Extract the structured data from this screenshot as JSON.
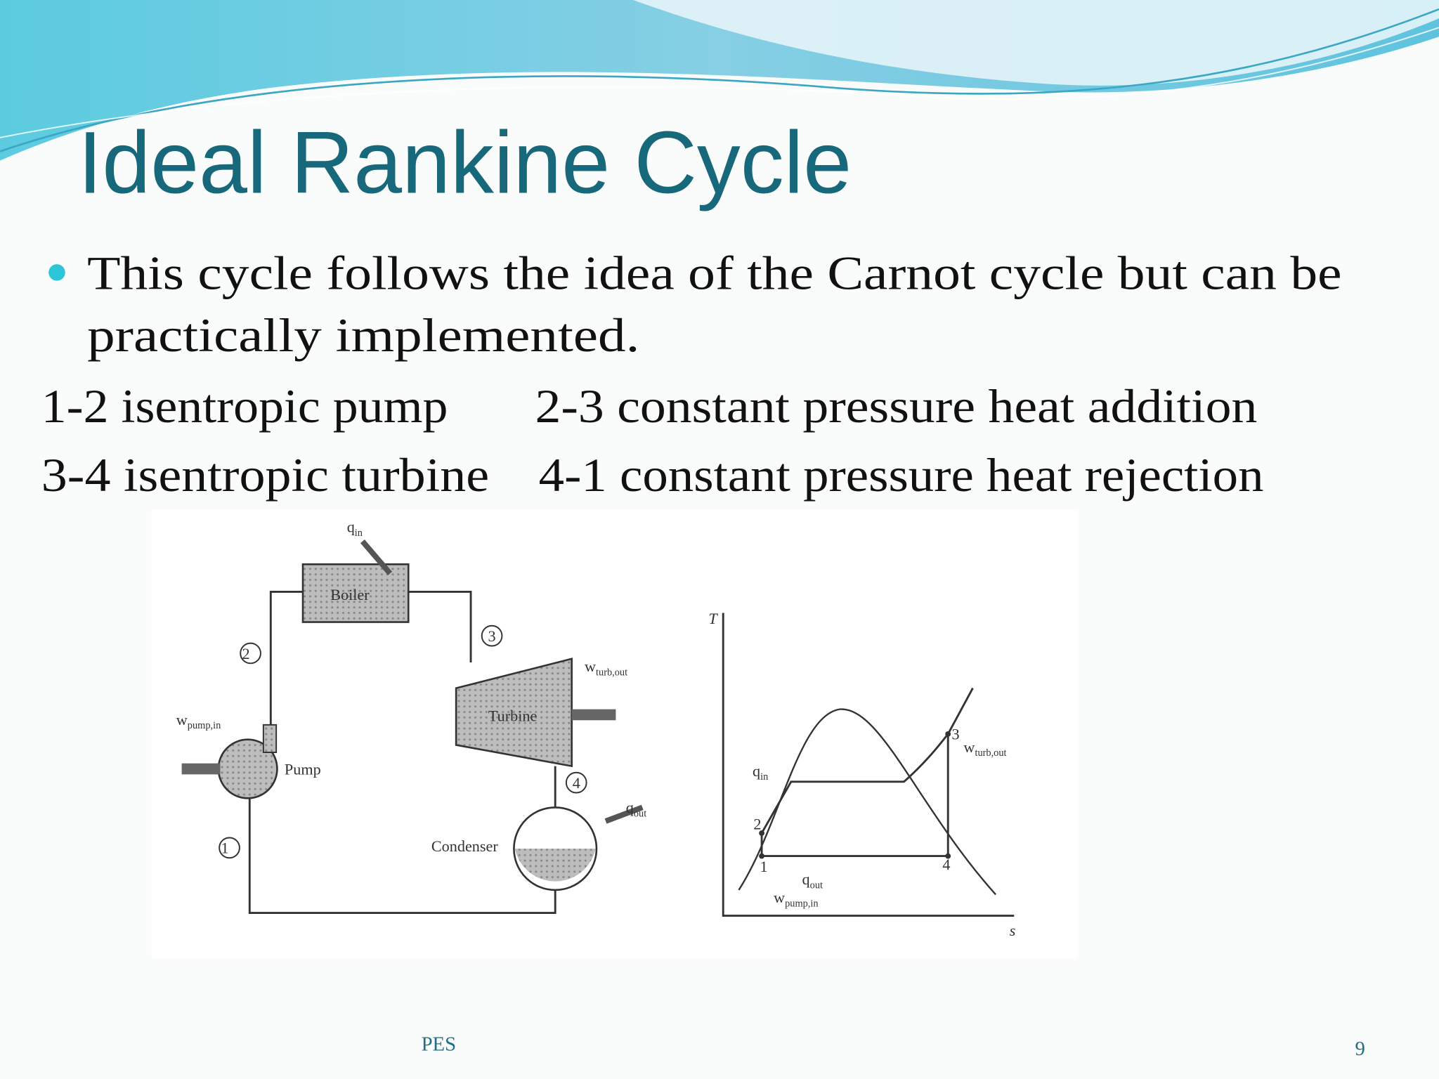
{
  "slide": {
    "title": "Ideal Rankine Cycle",
    "bullet": {
      "line1": "This cycle follows the idea of the Carnot cycle but can be",
      "line2": "practically implemented."
    },
    "processes": [
      "1-2 isentropic pump",
      "2-3 constant pressure heat addition",
      "3-4 isentropic turbine",
      "4-1 constant pressure heat rejection"
    ],
    "schematic": {
      "components": [
        "Boiler",
        "Turbine",
        "Pump",
        "Condenser"
      ],
      "states": [
        "1",
        "2",
        "3",
        "4"
      ],
      "q_in": {
        "symbol": "q",
        "subscript": "in"
      },
      "q_out": {
        "symbol": "q",
        "subscript": "out"
      },
      "w_turb_out": {
        "symbol": "w",
        "subscript": "turb,out"
      },
      "w_pump_in": {
        "symbol": "w",
        "subscript": "pump,in"
      }
    },
    "ts_diagram": {
      "y_axis": "T",
      "x_axis": "s",
      "states": [
        "1",
        "2",
        "3",
        "4"
      ],
      "q_in": {
        "symbol": "q",
        "subscript": "in"
      },
      "q_out": {
        "symbol": "q",
        "subscript": "out"
      },
      "w_turb_out": {
        "symbol": "w",
        "subscript": "turb,out"
      },
      "w_pump_in": {
        "symbol": "w",
        "subscript": "pump,in"
      }
    },
    "footer": "PES",
    "page_number": "9"
  }
}
